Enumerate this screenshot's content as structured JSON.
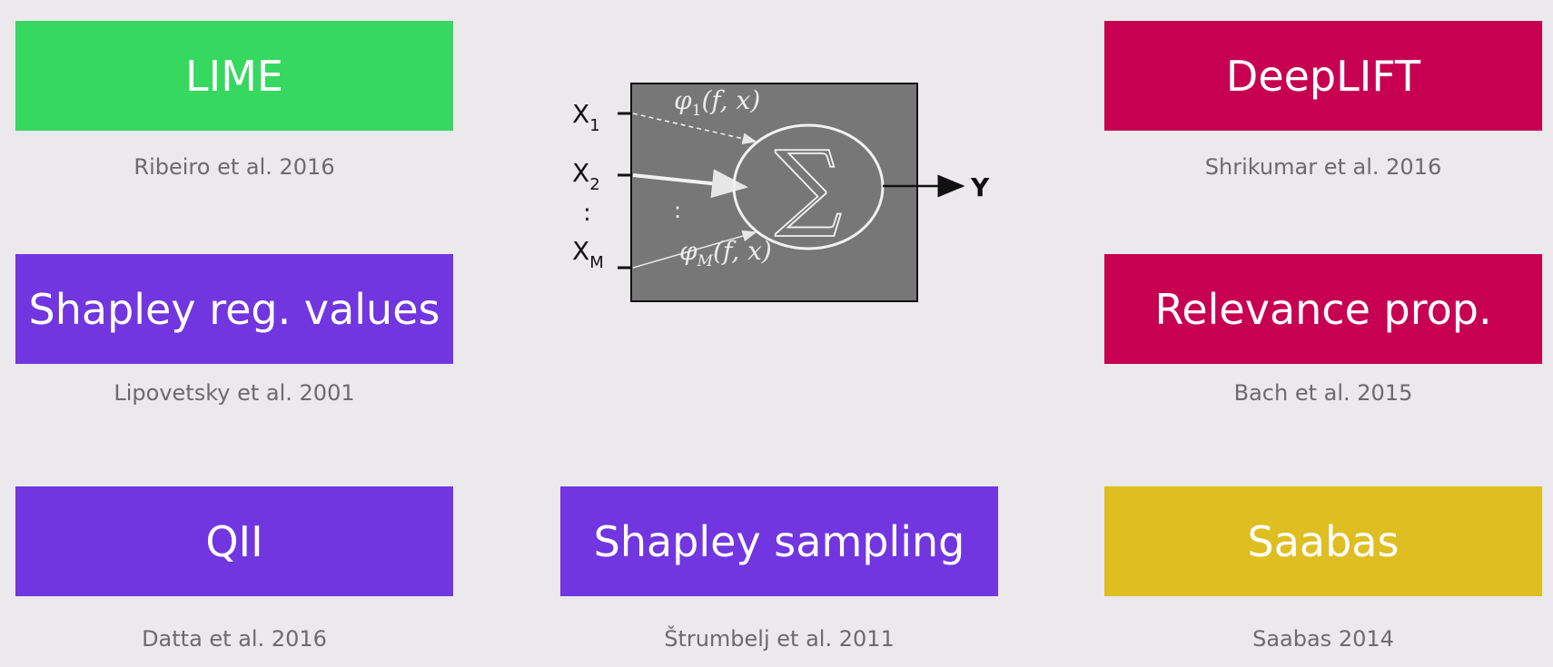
{
  "methods": [
    {
      "id": "lime",
      "label": "LIME",
      "citation": "Ribeiro et al. 2016",
      "color": "#36d860"
    },
    {
      "id": "shapley-reg",
      "label": "Shapley reg. values",
      "citation": "Lipovetsky et al. 2001",
      "color": "#7136df"
    },
    {
      "id": "qii",
      "label": "QII",
      "citation": "Datta et al. 2016",
      "color": "#7136df"
    },
    {
      "id": "shapley-sampling",
      "label": "Shapley sampling",
      "citation": "Štrumbelj et al. 2011",
      "color": "#7136df"
    },
    {
      "id": "deeplift",
      "label": "DeepLIFT",
      "citation": "Shrikumar et al. 2016",
      "color": "#c70052"
    },
    {
      "id": "relevance-prop",
      "label": "Relevance prop.",
      "citation": "Bach et al. 2015",
      "color": "#c70052"
    },
    {
      "id": "saabas",
      "label": "Saabas",
      "citation": "Saabas 2014",
      "color": "#dfbe21"
    }
  ],
  "diagram": {
    "inputs": [
      {
        "base": "X",
        "sub": "1"
      },
      {
        "base": "X",
        "sub": "2"
      },
      {
        "base": ":",
        "sub": ""
      },
      {
        "base": "X",
        "sub": "M"
      }
    ],
    "attribution_top": {
      "phi": "φ",
      "sub": "1",
      "args": "(f, x)"
    },
    "attribution_bottom": {
      "phi": "φ",
      "sub": "M",
      "args": "(f, x)"
    },
    "inner_dots": ":",
    "sum_symbol": "∑",
    "output": "Y"
  }
}
